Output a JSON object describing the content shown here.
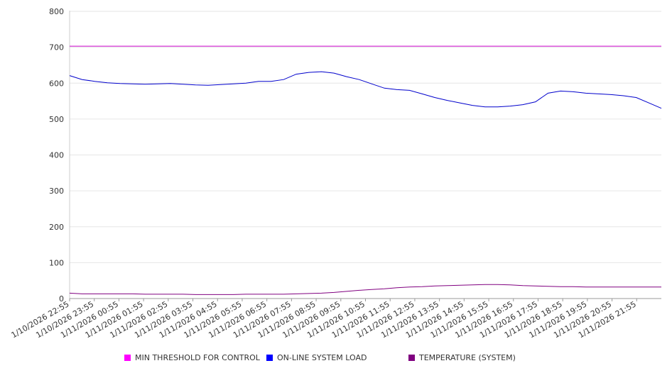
{
  "chart_data": {
    "type": "line",
    "title": "",
    "xlabel": "",
    "ylabel": "",
    "ylim": [
      0,
      800
    ],
    "yticks": [
      0,
      100,
      200,
      300,
      400,
      500,
      600,
      700,
      800
    ],
    "grid": "horizontal",
    "legend_position": "bottom",
    "x_tick_labels": [
      "1/10/2026 22:55",
      "1/10/2026 23:55",
      "1/11/2026 00:55",
      "1/11/2026 01:55",
      "1/11/2026 02:55",
      "1/11/2026 03:55",
      "1/11/2026 04:55",
      "1/11/2026 05:55",
      "1/11/2026 06:55",
      "1/11/2026 07:55",
      "1/11/2026 08:55",
      "1/11/2026 09:55",
      "1/11/2026 10:55",
      "1/11/2026 11:55",
      "1/11/2026 12:55",
      "1/11/2026 13:55",
      "1/11/2026 14:55",
      "1/11/2026 15:55",
      "1/11/2026 16:55",
      "1/11/2026 17:55",
      "1/11/2026 18:55",
      "1/11/2026 19:55",
      "1/11/2026 20:55",
      "1/11/2026 21:55"
    ],
    "x": [
      "1/10/2026 22:55",
      "1/10/2026 23:25",
      "1/10/2026 23:55",
      "1/11/2026 00:25",
      "1/11/2026 00:55",
      "1/11/2026 01:25",
      "1/11/2026 01:55",
      "1/11/2026 02:25",
      "1/11/2026 02:55",
      "1/11/2026 03:25",
      "1/11/2026 03:55",
      "1/11/2026 04:25",
      "1/11/2026 04:55",
      "1/11/2026 05:25",
      "1/11/2026 05:55",
      "1/11/2026 06:25",
      "1/11/2026 06:55",
      "1/11/2026 07:25",
      "1/11/2026 07:55",
      "1/11/2026 08:25",
      "1/11/2026 08:55",
      "1/11/2026 09:25",
      "1/11/2026 09:55",
      "1/11/2026 10:25",
      "1/11/2026 10:55",
      "1/11/2026 11:25",
      "1/11/2026 11:55",
      "1/11/2026 12:25",
      "1/11/2026 12:55",
      "1/11/2026 13:25",
      "1/11/2026 13:55",
      "1/11/2026 14:25",
      "1/11/2026 14:55",
      "1/11/2026 15:25",
      "1/11/2026 15:55",
      "1/11/2026 16:25",
      "1/11/2026 16:55",
      "1/11/2026 17:25",
      "1/11/2026 17:55",
      "1/11/2026 18:25",
      "1/11/2026 18:55",
      "1/11/2026 19:25",
      "1/11/2026 19:55",
      "1/11/2026 20:25",
      "1/11/2026 20:55",
      "1/11/2026 21:25",
      "1/11/2026 21:55",
      "1/11/2026 22:25"
    ],
    "series": [
      {
        "name": "MIN THRESHOLD FOR CONTROL",
        "color": "#cc00cc",
        "values": [
          703,
          703,
          703,
          703,
          703,
          703,
          703,
          703,
          703,
          703,
          703,
          703,
          703,
          703,
          703,
          703,
          703,
          703,
          703,
          703,
          703,
          703,
          703,
          703,
          703,
          703,
          703,
          703,
          703,
          703,
          703,
          703,
          703,
          703,
          703,
          703,
          703,
          703,
          703,
          703,
          703,
          703,
          703,
          703,
          703,
          703,
          703,
          703
        ]
      },
      {
        "name": "ON-LINE SYSTEM LOAD",
        "color": "#0000cc",
        "values": [
          621,
          610,
          605,
          601,
          599,
          598,
          597,
          598,
          599,
          597,
          595,
          594,
          596,
          598,
          600,
          605,
          605,
          610,
          625,
          630,
          632,
          628,
          618,
          610,
          598,
          586,
          582,
          580,
          570,
          560,
          552,
          545,
          538,
          534,
          534,
          536,
          540,
          548,
          572,
          578,
          576,
          572,
          570,
          568,
          565,
          560,
          545,
          530
        ]
      },
      {
        "name": "TEMPERATURE (SYSTEM)",
        "color": "#800080",
        "values": [
          15,
          13,
          13,
          13,
          13,
          13,
          12,
          12,
          12,
          12,
          11,
          11,
          11,
          11,
          12,
          12,
          12,
          12,
          13,
          14,
          15,
          17,
          20,
          23,
          25,
          27,
          30,
          32,
          33,
          35,
          36,
          37,
          38,
          39,
          39,
          38,
          36,
          35,
          34,
          33,
          33,
          32,
          32,
          32,
          32,
          32,
          32,
          32
        ]
      }
    ]
  }
}
